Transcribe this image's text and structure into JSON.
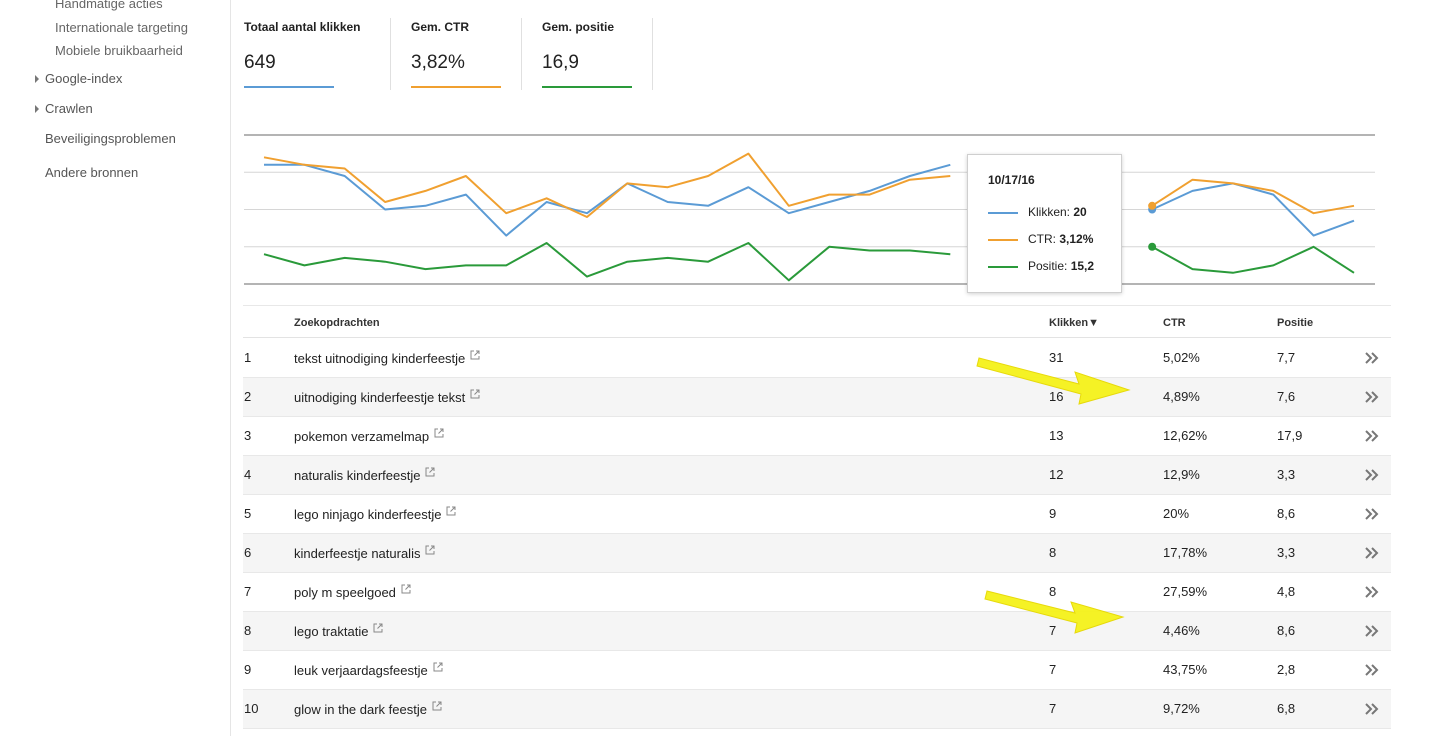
{
  "sidebar": {
    "items": [
      {
        "label": "Handmatige acties"
      },
      {
        "label": "Internationale targeting"
      },
      {
        "label": "Mobiele bruikbaarheid"
      },
      {
        "label": "Google-index"
      },
      {
        "label": "Crawlen"
      },
      {
        "label": "Beveiligingsproblemen"
      },
      {
        "label": "Andere bronnen"
      }
    ]
  },
  "metrics": [
    {
      "label": "Totaal aantal klikken",
      "value": "649",
      "color": "#5b9bd5"
    },
    {
      "label": "Gem. CTR",
      "value": "3,82%",
      "color": "#f0a030"
    },
    {
      "label": "Gem. positie",
      "value": "16,9",
      "color": "#2a9a3a"
    }
  ],
  "tooltip": {
    "date": "10/17/16",
    "rows": [
      {
        "label": "Klikken: ",
        "value": "20",
        "color": "#5b9bd5"
      },
      {
        "label": "CTR: ",
        "value": "3,12%",
        "color": "#f0a030"
      },
      {
        "label": "Positie: ",
        "value": "15,2",
        "color": "#2a9a3a"
      }
    ]
  },
  "chart_data": {
    "type": "line",
    "x": [
      1,
      2,
      3,
      4,
      5,
      6,
      7,
      8,
      9,
      10,
      11,
      12,
      13,
      14,
      15,
      16,
      17,
      18,
      19,
      20,
      21,
      22,
      23,
      24,
      25,
      26,
      27,
      28
    ],
    "grid": true,
    "highlight_index": 22,
    "series": [
      {
        "name": "Klikken",
        "color": "#5b9bd5",
        "values": [
          32,
          32,
          29,
          20,
          21,
          24,
          13,
          22,
          19,
          27,
          22,
          21,
          26,
          19,
          22,
          25,
          29,
          32,
          null,
          null,
          null,
          null,
          20,
          25,
          27,
          24,
          13,
          17
        ]
      },
      {
        "name": "CTR",
        "color": "#f0a030",
        "values": [
          34,
          32,
          31,
          22,
          25,
          29,
          19,
          23,
          18,
          27,
          26,
          29,
          35,
          21,
          24,
          24,
          28,
          29,
          null,
          null,
          null,
          null,
          21,
          28,
          27,
          25,
          19,
          21
        ]
      },
      {
        "name": "Positie",
        "color": "#2a9a3a",
        "values": [
          8,
          5,
          7,
          6,
          4,
          5,
          5,
          11,
          2,
          6,
          7,
          6,
          11,
          1,
          10,
          9,
          9,
          8,
          null,
          null,
          null,
          null,
          10,
          4,
          3,
          5,
          10,
          3
        ]
      }
    ]
  },
  "table": {
    "headers": {
      "query": "Zoekopdrachten",
      "clicks": "Klikken▼",
      "ctr": "CTR",
      "position": "Positie"
    },
    "rows": [
      {
        "num": "1",
        "query": "tekst uitnodiging kinderfeestje",
        "clicks": "31",
        "ctr": "5,02%",
        "position": "7,7"
      },
      {
        "num": "2",
        "query": "uitnodiging kinderfeestje tekst",
        "clicks": "16",
        "ctr": "4,89%",
        "position": "7,6"
      },
      {
        "num": "3",
        "query": "pokemon verzamelmap",
        "clicks": "13",
        "ctr": "12,62%",
        "position": "17,9"
      },
      {
        "num": "4",
        "query": "naturalis kinderfeestje",
        "clicks": "12",
        "ctr": "12,9%",
        "position": "3,3"
      },
      {
        "num": "5",
        "query": "lego ninjago kinderfeestje",
        "clicks": "9",
        "ctr": "20%",
        "position": "8,6"
      },
      {
        "num": "6",
        "query": "kinderfeestje naturalis",
        "clicks": "8",
        "ctr": "17,78%",
        "position": "3,3"
      },
      {
        "num": "7",
        "query": "poly m speelgoed",
        "clicks": "8",
        "ctr": "27,59%",
        "position": "4,8"
      },
      {
        "num": "8",
        "query": "lego traktatie",
        "clicks": "7",
        "ctr": "4,46%",
        "position": "8,6"
      },
      {
        "num": "9",
        "query": "leuk verjaardagsfeestje",
        "clicks": "7",
        "ctr": "43,75%",
        "position": "2,8"
      },
      {
        "num": "10",
        "query": "glow in the dark feestje",
        "clicks": "7",
        "ctr": "9,72%",
        "position": "6,8"
      }
    ]
  },
  "annotation_color": "#f5f21a"
}
